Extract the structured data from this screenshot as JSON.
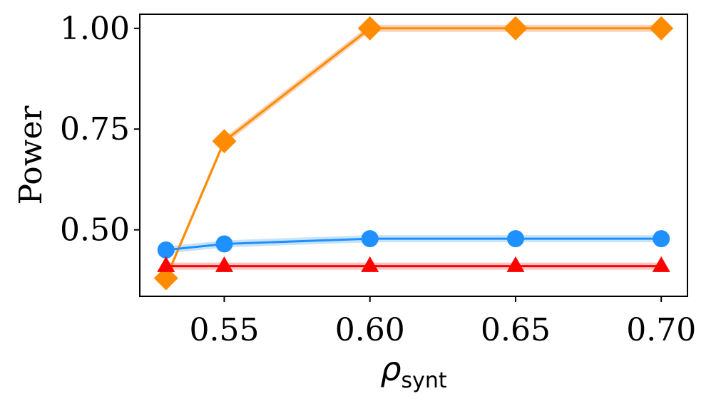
{
  "chart_data": {
    "type": "line",
    "title": "",
    "xlabel": "ρ",
    "xlabel_subscript": "synt",
    "ylabel": "Power",
    "x": [
      0.53,
      0.55,
      0.6,
      0.65,
      0.7
    ],
    "xlim": [
      0.521,
      0.709
    ],
    "ylim": [
      0.335,
      1.035
    ],
    "xticks": [
      0.55,
      0.6,
      0.65,
      0.7
    ],
    "xtick_labels": [
      "0.55",
      "0.60",
      "0.65",
      "0.70"
    ],
    "yticks": [
      0.5,
      0.75,
      1.0
    ],
    "ytick_labels": [
      "0.50",
      "0.75",
      "1.00"
    ],
    "grid": false,
    "series": [
      {
        "values": [
          0.38,
          0.72,
          1.0,
          1.0,
          1.0
        ],
        "color": "#ff8c00",
        "band_color": "#f5c8a8",
        "marker": "diamond"
      },
      {
        "values": [
          0.45,
          0.465,
          0.478,
          0.478,
          0.478
        ],
        "color": "#1e90ff",
        "band_color": "#b9dcf5",
        "marker": "circle"
      },
      {
        "values": [
          0.41,
          0.41,
          0.41,
          0.41,
          0.41
        ],
        "color": "#ff0000",
        "band_color": "#f5b4b4",
        "marker": "triangle"
      }
    ]
  }
}
